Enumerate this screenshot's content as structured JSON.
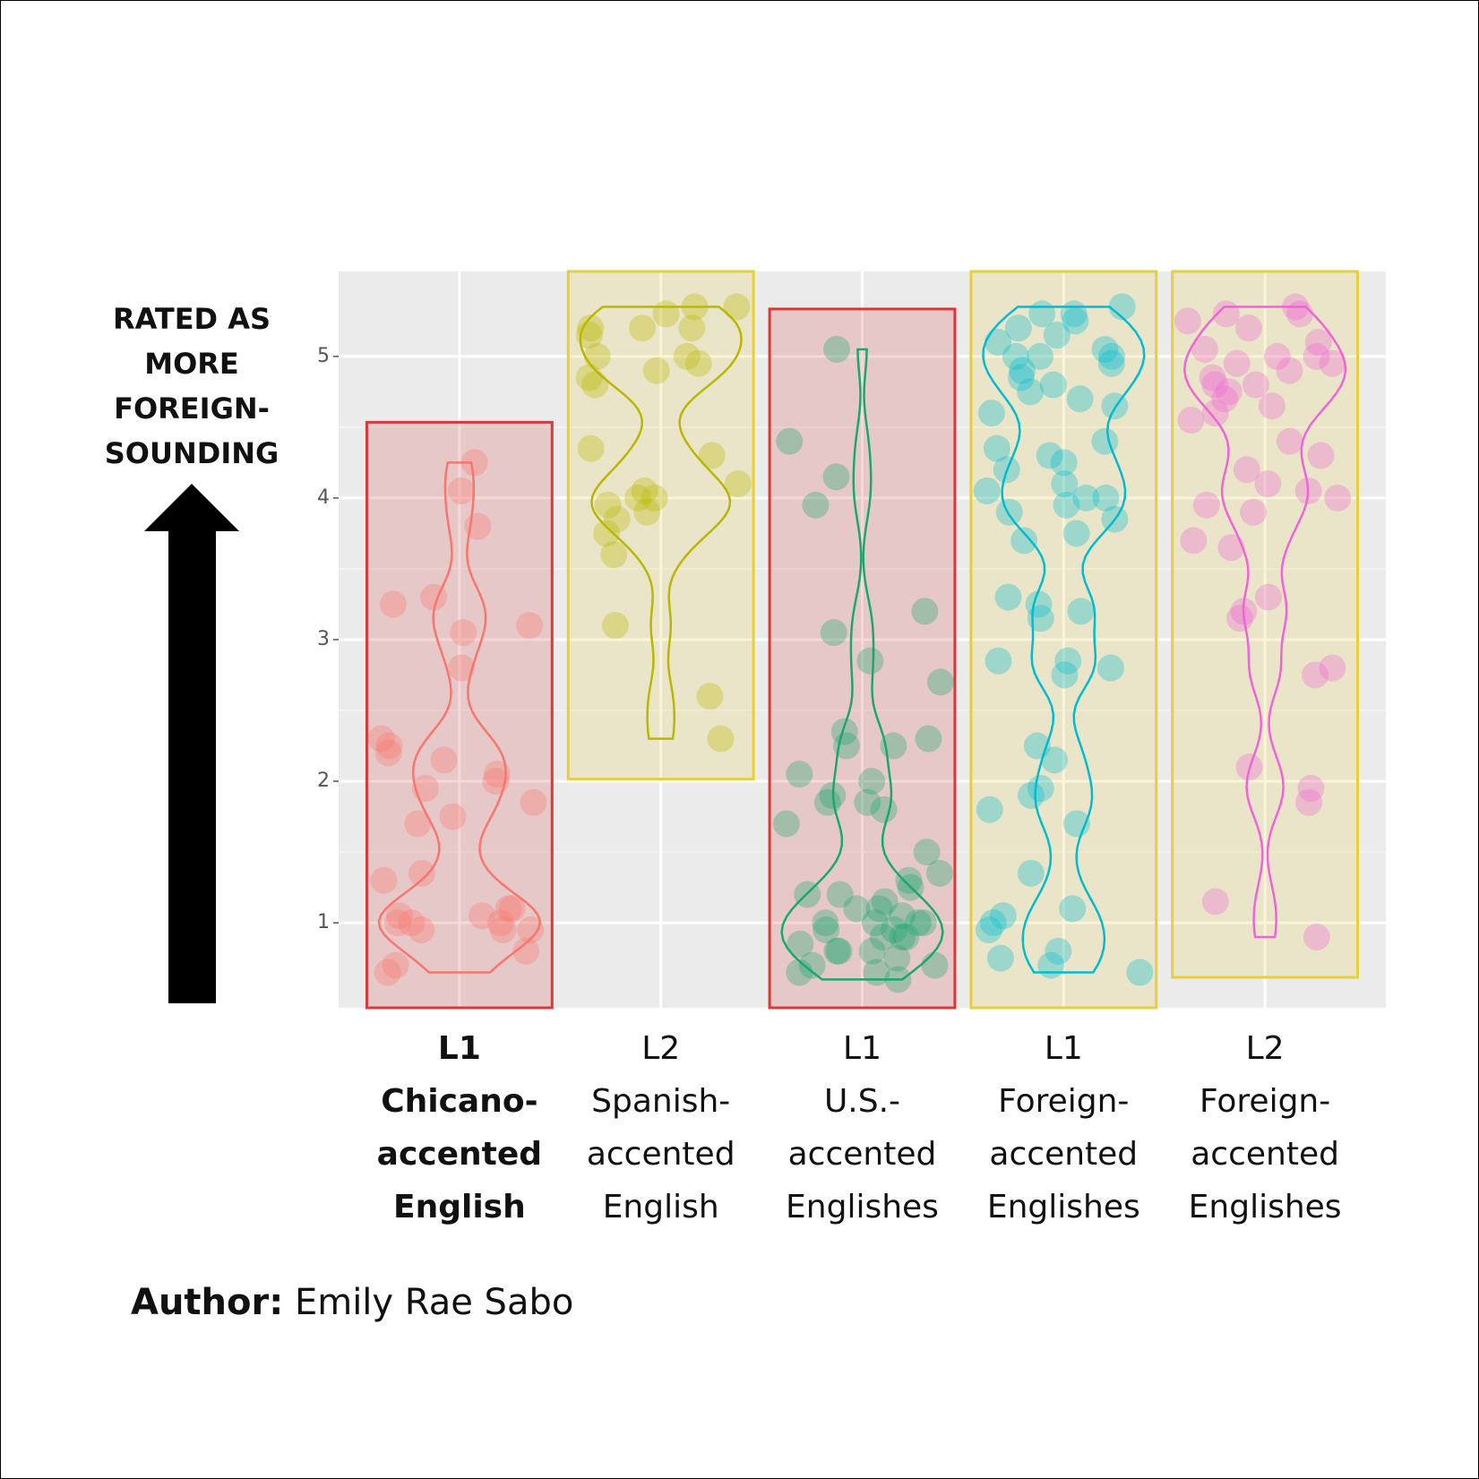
{
  "chart_data": {
    "type": "strip",
    "annotation": "RATED AS\nMORE\nFOREIGN-\nSOUNDING",
    "categories": [
      "L1\nChicano-\naccented\nEnglish",
      "L2\nSpanish-\naccented\nEnglish",
      "L1\nU.S.-\naccented\nEnglishes",
      "L1\nForeign-\naccented\nEnglishes",
      "L2\nForeign-\naccented\nEnglishes"
    ],
    "highlight_category": 0,
    "ylim": [
      0.4,
      5.6
    ],
    "yticks": [
      1,
      2,
      3,
      4,
      5
    ],
    "grid": true,
    "series": [
      {
        "color": "#f8766d",
        "box_color": "#d83a3a",
        "values": [
          4.25,
          4.05,
          3.8,
          3.3,
          3.25,
          3.05,
          3.1,
          2.8,
          2.3,
          2.25,
          2.2,
          2.15,
          2.05,
          2.0,
          1.95,
          1.85,
          1.75,
          1.7,
          1.35,
          1.3,
          1.1,
          1.1,
          1.05,
          1.0,
          1.0,
          0.95,
          0.95,
          0.95,
          0.8,
          0.7,
          0.65,
          1.0,
          1.05
        ]
      },
      {
        "color": "#b8b800",
        "box_color": "#e6cf3c",
        "values": [
          5.35,
          5.3,
          5.35,
          5.2,
          5.2,
          5.2,
          5.15,
          5.0,
          5.0,
          4.95,
          4.9,
          4.85,
          4.8,
          4.35,
          4.3,
          4.1,
          4.05,
          4.0,
          4.0,
          3.95,
          3.9,
          3.85,
          3.75,
          3.6,
          3.1,
          2.6,
          2.3
        ]
      },
      {
        "color": "#19a870",
        "box_color": "#d83a3a",
        "values": [
          5.05,
          4.4,
          4.15,
          3.95,
          3.2,
          3.05,
          2.85,
          2.7,
          2.35,
          2.3,
          2.25,
          2.25,
          2.05,
          2.0,
          1.9,
          1.85,
          1.85,
          1.8,
          1.7,
          1.5,
          1.35,
          1.3,
          1.25,
          1.2,
          1.15,
          1.1,
          1.05,
          1.0,
          1.0,
          1.0,
          0.95,
          0.95,
          0.9,
          0.9,
          0.85,
          0.8,
          0.8,
          0.75,
          0.7,
          0.7,
          0.65,
          0.65,
          0.6,
          1.2,
          1.1,
          1.0,
          0.9,
          0.8
        ]
      },
      {
        "color": "#00bcd0",
        "box_color": "#e6cf3c",
        "values": [
          5.35,
          5.3,
          5.3,
          5.25,
          5.2,
          5.15,
          5.1,
          5.05,
          5.0,
          5.0,
          5.0,
          4.95,
          4.9,
          4.85,
          4.8,
          4.75,
          4.7,
          4.65,
          4.6,
          4.4,
          4.35,
          4.3,
          4.25,
          4.2,
          4.1,
          4.05,
          4.0,
          4.0,
          3.95,
          3.9,
          3.85,
          3.75,
          3.7,
          3.3,
          3.25,
          3.2,
          3.15,
          2.85,
          2.85,
          2.8,
          2.75,
          2.25,
          2.15,
          1.95,
          1.9,
          1.8,
          1.7,
          1.35,
          1.1,
          1.05,
          1.0,
          0.95,
          0.8,
          0.75,
          0.7,
          0.65
        ]
      },
      {
        "color": "#f064d8",
        "box_color": "#e6cf3c",
        "values": [
          5.35,
          5.3,
          5.3,
          5.25,
          5.2,
          5.1,
          5.05,
          5.0,
          5.0,
          4.95,
          4.95,
          4.9,
          4.85,
          4.8,
          4.8,
          4.75,
          4.7,
          4.65,
          4.6,
          4.55,
          4.4,
          4.3,
          4.2,
          4.1,
          4.05,
          4.0,
          3.95,
          3.9,
          3.7,
          3.65,
          3.3,
          3.2,
          3.15,
          2.8,
          2.75,
          2.1,
          1.95,
          1.85,
          1.15,
          0.9
        ]
      }
    ]
  },
  "credit": {
    "label": "Author:",
    "name": "Emily Rae Sabo"
  }
}
